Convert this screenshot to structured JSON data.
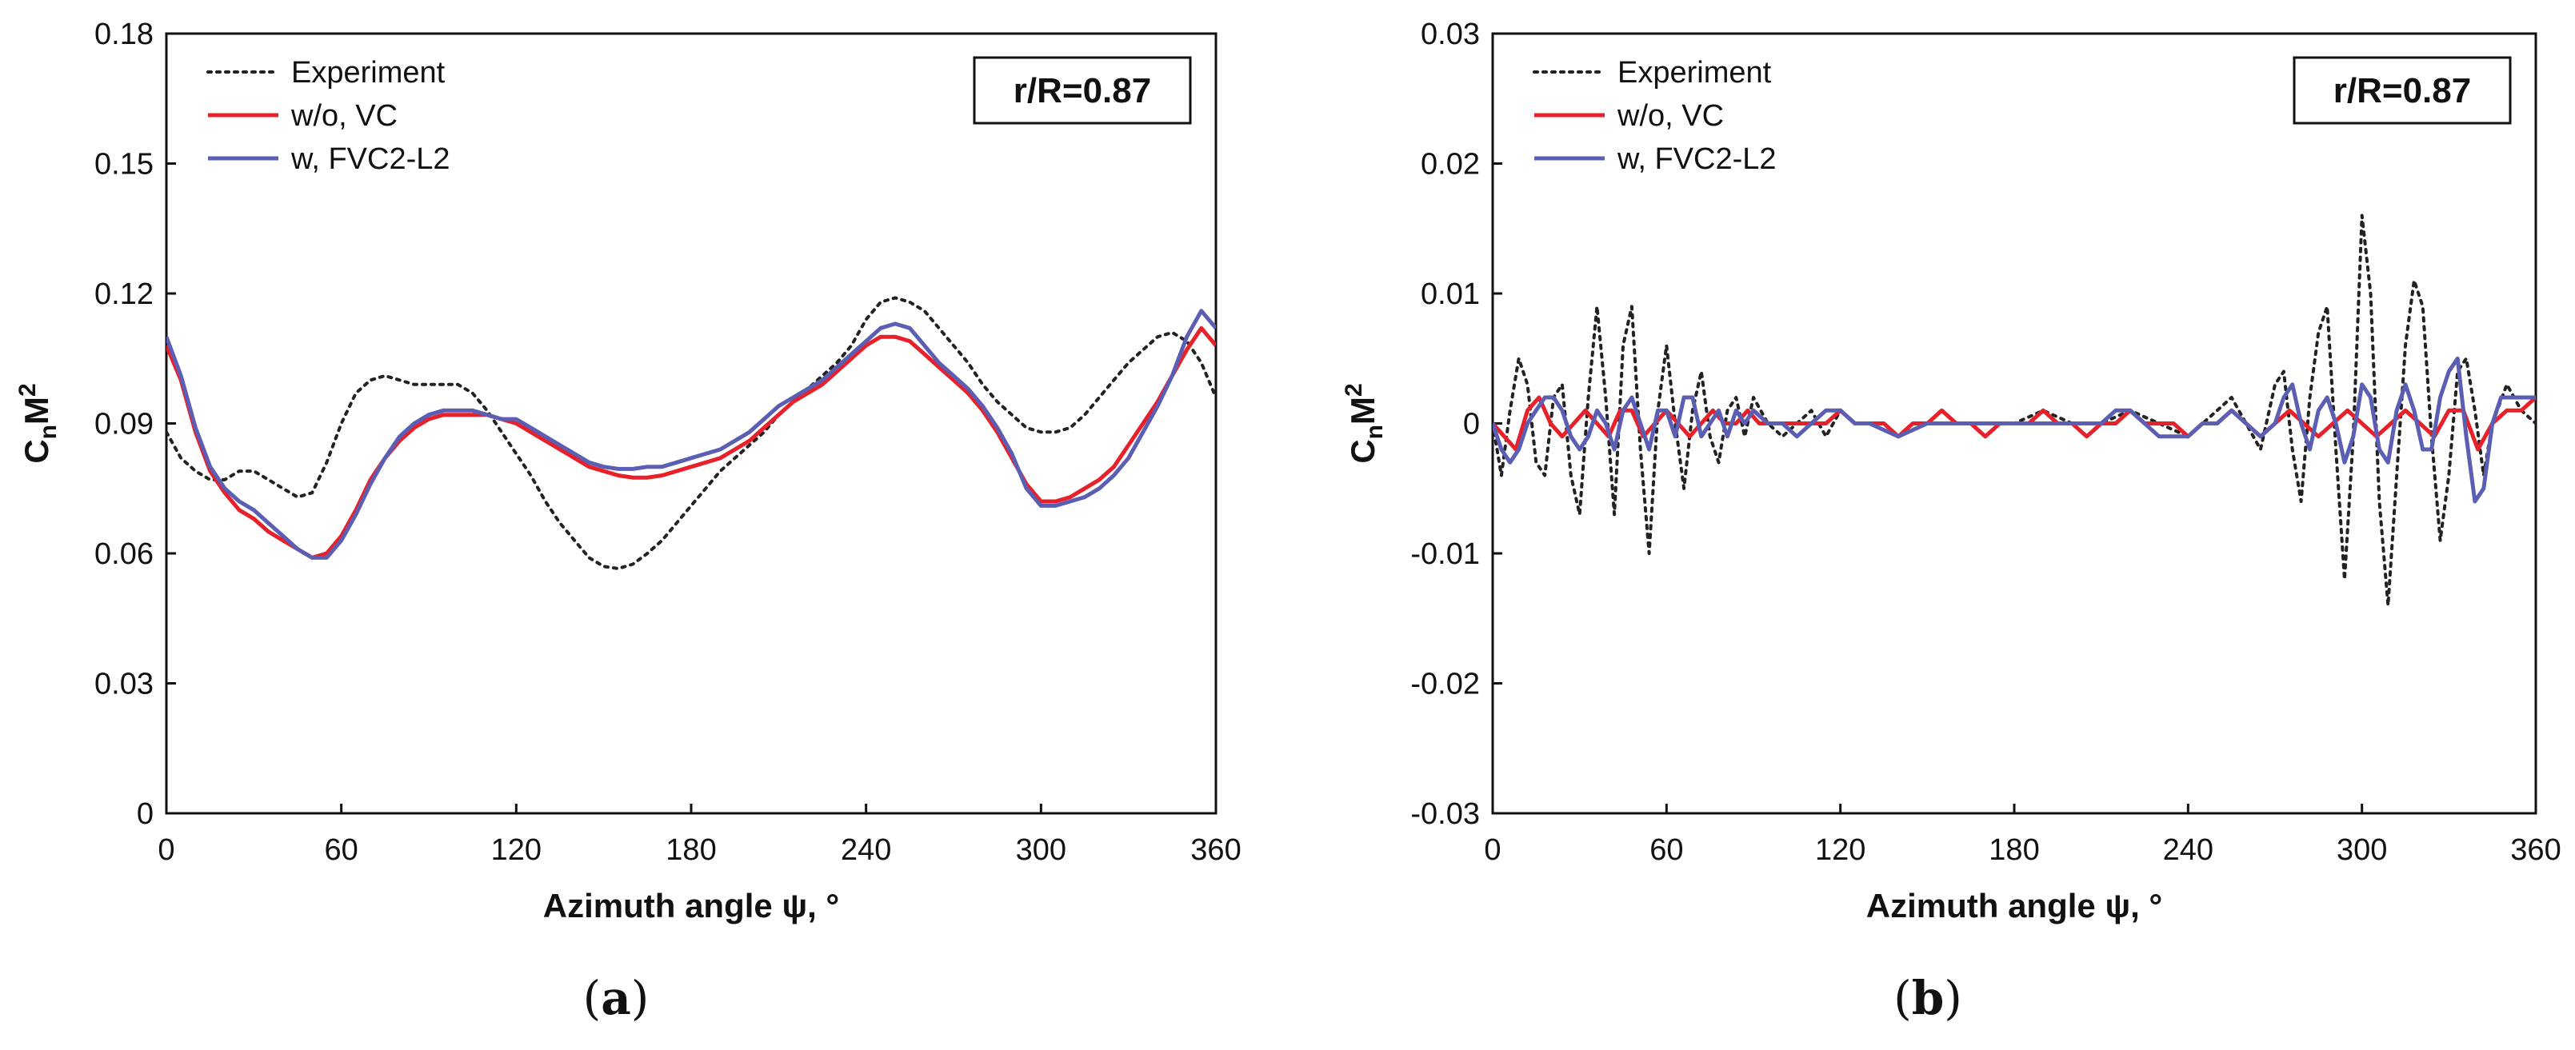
{
  "chart_data": [
    {
      "type": "line",
      "panel_label": "(a)",
      "panel_letter": "a",
      "xlabel": "Azimuth angle ψ, °",
      "ylabel_main": "C",
      "ylabel_sub": "n",
      "ylabel_main2": "M",
      "ylabel_sup": "2",
      "xlim": [
        0,
        360
      ],
      "ylim": [
        0,
        0.18
      ],
      "xticks": [
        0,
        60,
        120,
        180,
        240,
        300,
        360
      ],
      "xtick_labels": [
        "0",
        "60",
        "120",
        "180",
        "240",
        "300",
        "360"
      ],
      "yticks": [
        0,
        0.03,
        0.06,
        0.09,
        0.12,
        0.15,
        0.18
      ],
      "ytick_labels": [
        "0",
        "0.03",
        "0.06",
        "0.09",
        "0.12",
        "0.15",
        "0.18"
      ],
      "annotation": "r/R=0.87",
      "legend_position": "top-left",
      "series": [
        {
          "name": "Experiment",
          "color": "#222222",
          "style": "dotted",
          "x": [
            0,
            5,
            10,
            15,
            20,
            25,
            30,
            35,
            40,
            45,
            50,
            55,
            60,
            65,
            70,
            75,
            80,
            85,
            90,
            95,
            100,
            105,
            110,
            115,
            120,
            125,
            130,
            135,
            140,
            145,
            150,
            155,
            160,
            165,
            170,
            175,
            180,
            185,
            190,
            195,
            200,
            205,
            210,
            215,
            220,
            225,
            230,
            235,
            240,
            245,
            250,
            255,
            260,
            265,
            270,
            275,
            280,
            285,
            290,
            295,
            300,
            305,
            310,
            315,
            320,
            325,
            330,
            335,
            340,
            345,
            350,
            355,
            360
          ],
          "y": [
            0.088,
            0.082,
            0.079,
            0.077,
            0.077,
            0.079,
            0.079,
            0.077,
            0.075,
            0.073,
            0.074,
            0.081,
            0.09,
            0.097,
            0.1,
            0.101,
            0.1,
            0.099,
            0.099,
            0.099,
            0.099,
            0.097,
            0.093,
            0.088,
            0.083,
            0.078,
            0.072,
            0.067,
            0.063,
            0.059,
            0.057,
            0.0565,
            0.0575,
            0.06,
            0.063,
            0.067,
            0.071,
            0.075,
            0.079,
            0.082,
            0.085,
            0.088,
            0.092,
            0.095,
            0.098,
            0.101,
            0.104,
            0.108,
            0.114,
            0.118,
            0.119,
            0.118,
            0.116,
            0.112,
            0.108,
            0.104,
            0.099,
            0.095,
            0.092,
            0.089,
            0.088,
            0.088,
            0.089,
            0.092,
            0.096,
            0.1,
            0.104,
            0.107,
            0.11,
            0.111,
            0.109,
            0.104,
            0.096
          ]
        },
        {
          "name": "w/o, VC",
          "color": "#e8202a",
          "style": "solid",
          "x": [
            0,
            5,
            10,
            15,
            20,
            25,
            30,
            35,
            40,
            45,
            50,
            55,
            60,
            65,
            70,
            75,
            80,
            85,
            90,
            95,
            100,
            105,
            110,
            115,
            120,
            125,
            130,
            135,
            140,
            145,
            150,
            155,
            160,
            165,
            170,
            175,
            180,
            185,
            190,
            195,
            200,
            205,
            210,
            215,
            220,
            225,
            230,
            235,
            240,
            245,
            250,
            255,
            260,
            265,
            270,
            275,
            280,
            285,
            290,
            295,
            300,
            305,
            310,
            315,
            320,
            325,
            330,
            335,
            340,
            345,
            350,
            355,
            360
          ],
          "y": [
            0.108,
            0.1,
            0.088,
            0.079,
            0.074,
            0.07,
            0.068,
            0.065,
            0.063,
            0.061,
            0.059,
            0.06,
            0.064,
            0.07,
            0.077,
            0.082,
            0.086,
            0.089,
            0.091,
            0.092,
            0.092,
            0.092,
            0.092,
            0.091,
            0.09,
            0.088,
            0.086,
            0.084,
            0.082,
            0.08,
            0.079,
            0.078,
            0.0775,
            0.0775,
            0.078,
            0.079,
            0.08,
            0.081,
            0.082,
            0.084,
            0.086,
            0.089,
            0.092,
            0.095,
            0.097,
            0.099,
            0.102,
            0.105,
            0.108,
            0.11,
            0.11,
            0.109,
            0.106,
            0.103,
            0.1,
            0.097,
            0.093,
            0.088,
            0.082,
            0.076,
            0.072,
            0.072,
            0.073,
            0.075,
            0.077,
            0.08,
            0.085,
            0.09,
            0.095,
            0.101,
            0.107,
            0.112,
            0.108
          ]
        },
        {
          "name": "w, FVC2-L2",
          "color": "#5b5fb4",
          "style": "solid",
          "x": [
            0,
            5,
            10,
            15,
            20,
            25,
            30,
            35,
            40,
            45,
            50,
            55,
            60,
            65,
            70,
            75,
            80,
            85,
            90,
            95,
            100,
            105,
            110,
            115,
            120,
            125,
            130,
            135,
            140,
            145,
            150,
            155,
            160,
            165,
            170,
            175,
            180,
            185,
            190,
            195,
            200,
            205,
            210,
            215,
            220,
            225,
            230,
            235,
            240,
            245,
            250,
            255,
            260,
            265,
            270,
            275,
            280,
            285,
            290,
            295,
            300,
            305,
            310,
            315,
            320,
            325,
            330,
            335,
            340,
            345,
            350,
            355,
            360
          ],
          "y": [
            0.11,
            0.101,
            0.089,
            0.08,
            0.075,
            0.072,
            0.07,
            0.067,
            0.064,
            0.061,
            0.059,
            0.059,
            0.063,
            0.069,
            0.076,
            0.082,
            0.087,
            0.09,
            0.092,
            0.093,
            0.093,
            0.093,
            0.092,
            0.091,
            0.091,
            0.089,
            0.087,
            0.085,
            0.083,
            0.081,
            0.08,
            0.0795,
            0.0795,
            0.08,
            0.08,
            0.081,
            0.082,
            0.083,
            0.084,
            0.086,
            0.088,
            0.091,
            0.094,
            0.096,
            0.098,
            0.1,
            0.103,
            0.106,
            0.109,
            0.112,
            0.113,
            0.112,
            0.108,
            0.104,
            0.101,
            0.098,
            0.094,
            0.089,
            0.083,
            0.075,
            0.071,
            0.071,
            0.072,
            0.073,
            0.075,
            0.078,
            0.082,
            0.088,
            0.094,
            0.101,
            0.11,
            0.116,
            0.112
          ]
        }
      ]
    },
    {
      "type": "line",
      "panel_label": "(b)",
      "panel_letter": "b",
      "xlabel": "Azimuth angle ψ, °",
      "ylabel_main": "C",
      "ylabel_sub": "n",
      "ylabel_main2": "M",
      "ylabel_sup": "2",
      "xlim": [
        0,
        360
      ],
      "ylim": [
        -0.03,
        0.03
      ],
      "xticks": [
        0,
        60,
        120,
        180,
        240,
        300,
        360
      ],
      "xtick_labels": [
        "0",
        "60",
        "120",
        "180",
        "240",
        "300",
        "360"
      ],
      "yticks": [
        -0.03,
        -0.02,
        -0.01,
        0,
        0.01,
        0.02,
        0.03
      ],
      "ytick_labels": [
        "-0.03",
        "-0.02",
        "-0.01",
        "0",
        "0.01",
        "0.02",
        "0.03"
      ],
      "annotation": "r/R=0.87",
      "legend_position": "top-left",
      "series": [
        {
          "name": "Experiment",
          "color": "#222222",
          "style": "dotted",
          "x": [
            0,
            3,
            6,
            9,
            12,
            15,
            18,
            21,
            24,
            27,
            30,
            33,
            36,
            39,
            42,
            45,
            48,
            51,
            54,
            57,
            60,
            63,
            66,
            69,
            72,
            75,
            78,
            81,
            84,
            87,
            90,
            95,
            100,
            105,
            110,
            115,
            120,
            125,
            130,
            135,
            140,
            150,
            160,
            170,
            180,
            190,
            200,
            210,
            220,
            230,
            240,
            250,
            255,
            260,
            265,
            270,
            273,
            276,
            279,
            282,
            285,
            288,
            291,
            294,
            297,
            300,
            303,
            306,
            309,
            312,
            315,
            318,
            321,
            324,
            327,
            330,
            333,
            336,
            339,
            342,
            345,
            350,
            355,
            360
          ],
          "y": [
            0.0,
            -0.004,
            0.001,
            0.005,
            0.003,
            -0.003,
            -0.004,
            0.002,
            0.003,
            -0.004,
            -0.007,
            0.002,
            0.009,
            0.002,
            -0.007,
            0.006,
            0.009,
            -0.002,
            -0.01,
            0.001,
            0.006,
            0.0,
            -0.005,
            0.001,
            0.004,
            -0.001,
            -0.003,
            0.001,
            0.002,
            -0.001,
            0.002,
            0.0,
            -0.001,
            0.0,
            0.001,
            -0.001,
            0.001,
            0.0,
            0.0,
            0.0,
            -0.001,
            0.0,
            0.0,
            0.0,
            0.0,
            0.001,
            0.0,
            0.0,
            0.001,
            0.0,
            -0.001,
            0.001,
            0.002,
            0.0,
            -0.002,
            0.003,
            0.004,
            -0.002,
            -0.006,
            0.002,
            0.007,
            0.009,
            -0.002,
            -0.012,
            -0.001,
            0.016,
            0.01,
            -0.006,
            -0.014,
            -0.004,
            0.006,
            0.011,
            0.009,
            -0.001,
            -0.009,
            -0.004,
            0.004,
            0.005,
            0.001,
            -0.004,
            0.0,
            0.003,
            0.001,
            0.0
          ]
        },
        {
          "name": "w/o, VC",
          "color": "#e8202a",
          "style": "solid",
          "x": [
            0,
            4,
            8,
            12,
            16,
            20,
            24,
            28,
            32,
            36,
            40,
            44,
            48,
            52,
            56,
            60,
            64,
            68,
            72,
            76,
            80,
            84,
            88,
            92,
            96,
            100,
            105,
            110,
            115,
            120,
            125,
            130,
            135,
            140,
            145,
            150,
            155,
            160,
            165,
            170,
            175,
            180,
            185,
            190,
            195,
            200,
            205,
            210,
            215,
            220,
            225,
            230,
            235,
            240,
            245,
            250,
            255,
            260,
            265,
            270,
            275,
            280,
            285,
            290,
            295,
            300,
            305,
            310,
            315,
            320,
            325,
            330,
            335,
            340,
            345,
            350,
            355,
            360
          ],
          "y": [
            0.0,
            -0.001,
            -0.002,
            0.001,
            0.002,
            0.0,
            -0.001,
            0.0,
            0.001,
            0.0,
            -0.001,
            0.001,
            0.001,
            -0.001,
            0.0,
            0.001,
            0.0,
            -0.001,
            0.0,
            0.001,
            0.0,
            0.0,
            0.001,
            0.0,
            0.0,
            0.0,
            0.0,
            0.0,
            0.0,
            0.001,
            0.0,
            0.0,
            0.0,
            -0.001,
            0.0,
            0.0,
            0.001,
            0.0,
            0.0,
            -0.001,
            0.0,
            0.0,
            0.0,
            0.001,
            0.0,
            0.0,
            -0.001,
            0.0,
            0.0,
            0.001,
            0.0,
            0.0,
            0.0,
            -0.001,
            0.0,
            0.0,
            0.001,
            0.0,
            -0.001,
            0.0,
            0.001,
            0.0,
            -0.001,
            0.0,
            0.001,
            0.0,
            -0.001,
            0.0,
            0.001,
            0.0,
            -0.001,
            0.001,
            0.001,
            -0.002,
            0.0,
            0.001,
            0.001,
            0.002
          ]
        },
        {
          "name": "w, FVC2-L2",
          "color": "#5b5fb4",
          "style": "solid",
          "x": [
            0,
            3,
            6,
            9,
            12,
            15,
            18,
            21,
            24,
            27,
            30,
            33,
            36,
            39,
            42,
            45,
            48,
            51,
            54,
            57,
            60,
            63,
            66,
            69,
            72,
            75,
            78,
            81,
            84,
            87,
            90,
            95,
            100,
            105,
            110,
            115,
            120,
            125,
            130,
            140,
            150,
            160,
            170,
            180,
            190,
            200,
            205,
            210,
            215,
            220,
            225,
            230,
            235,
            240,
            245,
            250,
            255,
            260,
            265,
            270,
            273,
            276,
            279,
            282,
            285,
            288,
            291,
            294,
            297,
            300,
            303,
            306,
            309,
            312,
            315,
            318,
            321,
            324,
            327,
            330,
            333,
            336,
            339,
            342,
            345,
            348,
            351,
            354,
            357,
            360
          ],
          "y": [
            0.0,
            -0.002,
            -0.003,
            -0.002,
            0.0,
            0.001,
            0.002,
            0.002,
            0.001,
            -0.001,
            -0.002,
            -0.001,
            0.001,
            0.0,
            -0.002,
            0.001,
            0.002,
            0.0,
            -0.002,
            0.001,
            0.001,
            -0.001,
            0.002,
            0.002,
            -0.001,
            0.0,
            0.001,
            -0.001,
            0.001,
            0.0,
            0.001,
            0.0,
            0.0,
            -0.001,
            0.0,
            0.001,
            0.001,
            0.0,
            0.0,
            -0.001,
            0.0,
            0.0,
            0.0,
            0.0,
            0.0,
            0.0,
            0.0,
            0.0,
            0.001,
            0.001,
            0.0,
            -0.001,
            -0.001,
            -0.001,
            0.0,
            0.0,
            0.001,
            0.0,
            -0.001,
            0.0,
            0.002,
            0.003,
            0.0,
            -0.002,
            0.001,
            0.002,
            0.0,
            -0.003,
            -0.001,
            0.003,
            0.002,
            -0.002,
            -0.003,
            0.001,
            0.003,
            0.001,
            -0.002,
            -0.002,
            0.002,
            0.004,
            0.005,
            -0.001,
            -0.006,
            -0.005,
            0.0,
            0.002,
            0.002,
            0.002,
            0.002,
            0.002
          ]
        }
      ]
    }
  ]
}
